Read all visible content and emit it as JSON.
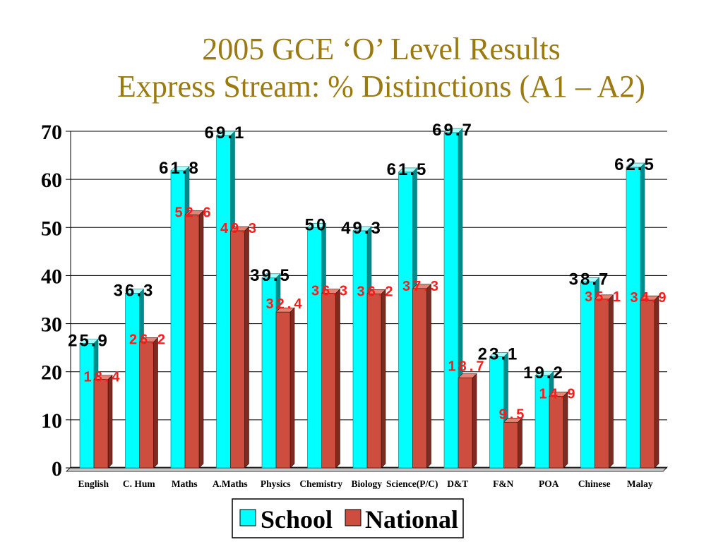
{
  "chart_data": {
    "type": "bar",
    "title": "2005 GCE ‘O’ Level Results",
    "subtitle": "Express Stream: % Distinctions (A1 – A2)",
    "categories": [
      "English",
      "C. Hum",
      "Maths",
      "A.Maths",
      "Physics",
      "Chemistry",
      "Biology",
      "Science(P/C)",
      "D&T",
      "F&N",
      "POA",
      "Chinese",
      "Malay"
    ],
    "series": [
      {
        "name": "School",
        "color": "#00ffff",
        "values": [
          25.9,
          36.3,
          61.8,
          69.1,
          39.5,
          50,
          49.3,
          61.5,
          69.7,
          23.1,
          19.2,
          38.7,
          62.5
        ]
      },
      {
        "name": "National",
        "color": "#cd4e3e",
        "values": [
          18.4,
          26.2,
          52.6,
          49.3,
          32.4,
          36.3,
          36.2,
          37.3,
          18.7,
          9.5,
          14.9,
          35.1,
          34.9
        ]
      }
    ],
    "ylim": [
      0,
      70
    ],
    "yticks": [
      0,
      10,
      20,
      30,
      40,
      50,
      60,
      70
    ],
    "grid": true,
    "legend": "bottom",
    "style_3d": true,
    "data_labels": true
  },
  "style": {
    "title_color": "#9c7a12",
    "school_label_color": "#000000",
    "national_label_color": "#ff1a1a"
  }
}
